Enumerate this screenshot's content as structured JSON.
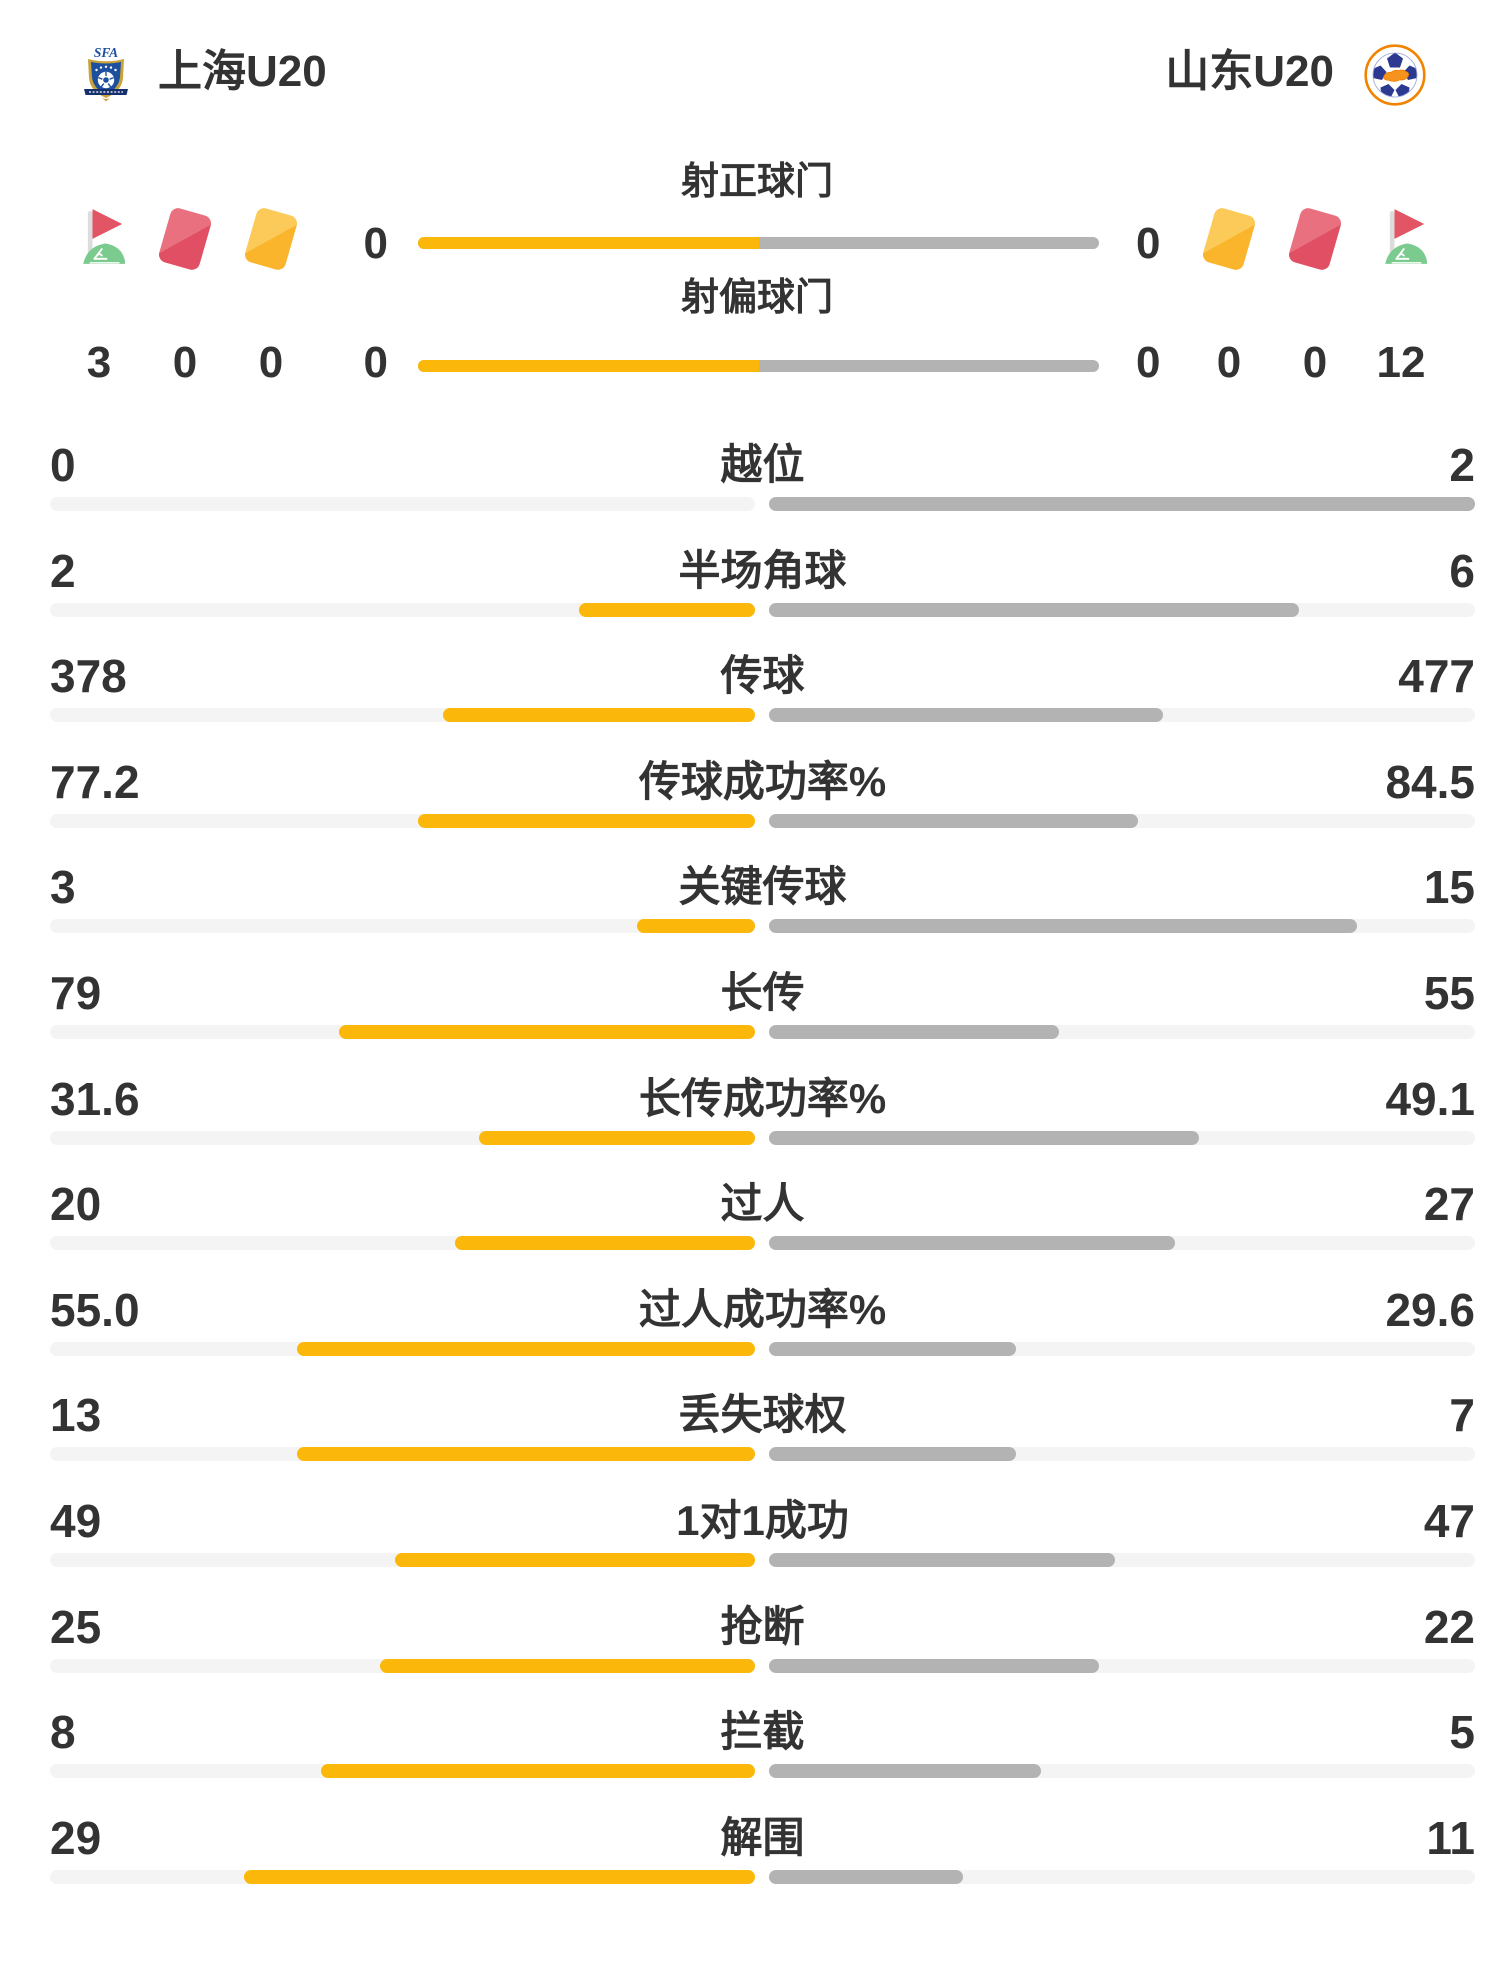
{
  "page": {
    "colors": {
      "background": "#ffffff",
      "text": "#333333",
      "bar_yellow": "#fbb80a",
      "bar_gray": "#b3b3b3",
      "bar_track": "#f4f4f4",
      "card_red": "#e04f63",
      "card_red_light": "#e8707f",
      "card_yellow": "#fbb52d",
      "card_yellow_light": "#fcca58",
      "flag_red": "#e25565",
      "flag_green": "#7ccb8e",
      "flag_pole": "#dcdcdc",
      "crest_navy": "#1c4f9e",
      "badge_orange": "#f08300",
      "badge_blue": "#2b3990"
    }
  },
  "header": {
    "home_team": "上海U20",
    "away_team": "山东U20",
    "home_logo": "sfa-crest",
    "away_logo": "shandong-fa-badge"
  },
  "discipline": {
    "home": [
      {
        "icon": "corner-flag",
        "count": "3"
      },
      {
        "icon": "red-card",
        "count": "0"
      },
      {
        "icon": "yellow-card",
        "count": "0"
      }
    ],
    "away": [
      {
        "icon": "yellow-card",
        "count": "0"
      },
      {
        "icon": "red-card",
        "count": "0"
      },
      {
        "icon": "corner-flag",
        "count": "12"
      }
    ]
  },
  "shots": [
    {
      "label": "射正球门",
      "home": "0",
      "away": "0"
    },
    {
      "label": "射偏球门",
      "home": "0",
      "away": "0"
    }
  ],
  "stats": [
    {
      "label": "越位",
      "home": "0",
      "away": "2"
    },
    {
      "label": "半场角球",
      "home": "2",
      "away": "6"
    },
    {
      "label": "传球",
      "home": "378",
      "away": "477"
    },
    {
      "label": "传球成功率%",
      "home": "77.2",
      "away": "84.5"
    },
    {
      "label": "关键传球",
      "home": "3",
      "away": "15"
    },
    {
      "label": "长传",
      "home": "79",
      "away": "55"
    },
    {
      "label": "长传成功率%",
      "home": "31.6",
      "away": "49.1"
    },
    {
      "label": "过人",
      "home": "20",
      "away": "27"
    },
    {
      "label": "过人成功率%",
      "home": "55.0",
      "away": "29.6"
    },
    {
      "label": "丢失球权",
      "home": "13",
      "away": "7"
    },
    {
      "label": "1对1成功",
      "home": "49",
      "away": "47"
    },
    {
      "label": "抢断",
      "home": "25",
      "away": "22"
    },
    {
      "label": "拦截",
      "home": "8",
      "away": "5"
    },
    {
      "label": "解围",
      "home": "29",
      "away": "11"
    }
  ],
  "chart_data": {
    "type": "bar",
    "title": "上海U20 vs 山东U20 比赛数据",
    "categories": [
      "射正球门",
      "射偏球门",
      "角旗/角球",
      "红牌",
      "黄牌",
      "越位",
      "半场角球",
      "传球",
      "传球成功率%",
      "关键传球",
      "长传",
      "长传成功率%",
      "过人",
      "过人成功率%",
      "丢失球权",
      "1对1成功",
      "抢断",
      "拦截",
      "解围"
    ],
    "series": [
      {
        "name": "上海U20",
        "values": [
          0,
          0,
          3,
          0,
          0,
          0,
          2,
          378,
          77.2,
          3,
          79,
          31.6,
          20,
          55.0,
          13,
          49,
          25,
          8,
          29
        ]
      },
      {
        "name": "山东U20",
        "values": [
          0,
          0,
          12,
          0,
          0,
          2,
          6,
          477,
          84.5,
          15,
          55,
          49.1,
          27,
          29.6,
          7,
          47,
          22,
          5,
          11
        ]
      }
    ],
    "layout": "center-anchored horizontal comparison bars; fill = value/(home+away) of each half"
  }
}
